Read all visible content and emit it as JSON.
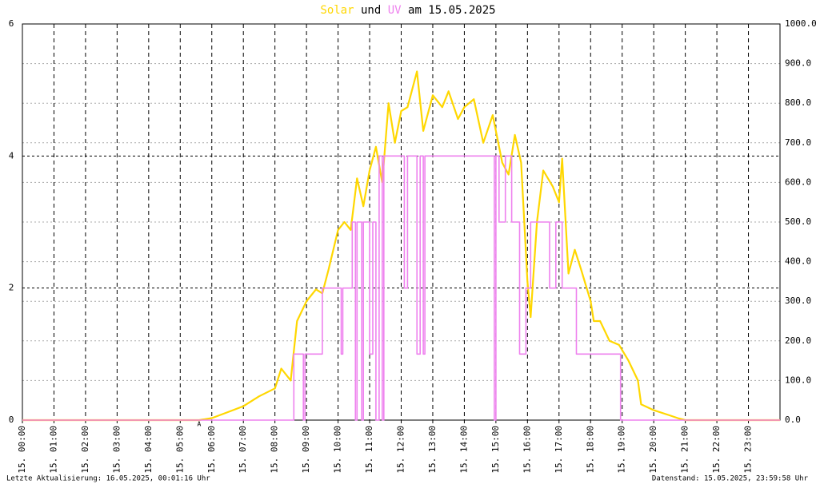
{
  "chart_data": {
    "type": "line",
    "title_connector": "und",
    "title_date": "am 15.05.2025",
    "footer_left": "Letzte Aktualisierung: 16.05.2025, 00:01:16 Uhr",
    "footer_right": "Datenstand: 15.05.2025, 23:59:58 Uhr",
    "xlim": [
      0,
      24
    ],
    "xticks": [
      {
        "value": 0,
        "label": "15. 00:00"
      },
      {
        "value": 1,
        "label": "15. 01:00"
      },
      {
        "value": 2,
        "label": "15. 02:00"
      },
      {
        "value": 3,
        "label": "15. 03:00"
      },
      {
        "value": 4,
        "label": "15. 04:00"
      },
      {
        "value": 5,
        "label": "15. 05:00"
      },
      {
        "value": 6,
        "label": "15. 06:00"
      },
      {
        "value": 7,
        "label": "15. 07:00"
      },
      {
        "value": 8,
        "label": "15. 08:00"
      },
      {
        "value": 9,
        "label": "15. 09:00"
      },
      {
        "value": 10,
        "label": "15. 10:00"
      },
      {
        "value": 11,
        "label": "15. 11:00"
      },
      {
        "value": 12,
        "label": "15. 12:00"
      },
      {
        "value": 13,
        "label": "15. 13:00"
      },
      {
        "value": 14,
        "label": "15. 14:00"
      },
      {
        "value": 15,
        "label": "15. 15:00"
      },
      {
        "value": 16,
        "label": "15. 16:00"
      },
      {
        "value": 17,
        "label": "15. 17:00"
      },
      {
        "value": 18,
        "label": "15. 18:00"
      },
      {
        "value": 19,
        "label": "15. 19:00"
      },
      {
        "value": 20,
        "label": "15. 20:00"
      },
      {
        "value": 21,
        "label": "15. 21:00"
      },
      {
        "value": 22,
        "label": "15. 22:00"
      },
      {
        "value": 23,
        "label": "15. 23:00"
      }
    ],
    "ylim": [
      0,
      6
    ],
    "yticks": [
      0,
      2,
      4,
      6
    ],
    "y2lim": [
      0,
      1000
    ],
    "y2ticks": [
      {
        "value": 0,
        "label": "0.0"
      },
      {
        "value": 100,
        "label": "100.0"
      },
      {
        "value": 200,
        "label": "200.0"
      },
      {
        "value": 300,
        "label": "300.0"
      },
      {
        "value": 400,
        "label": "400.0"
      },
      {
        "value": 500,
        "label": "500.0"
      },
      {
        "value": 600,
        "label": "600.0"
      },
      {
        "value": 700,
        "label": "700.0"
      },
      {
        "value": 800,
        "label": "800.0"
      },
      {
        "value": 900,
        "label": "900.0"
      },
      {
        "value": 1000,
        "label": "1000.0"
      }
    ],
    "grid": true,
    "annotations": [
      {
        "text": "A",
        "x": 5.6,
        "color": "#ff0000"
      }
    ],
    "series": [
      {
        "name": "Solar",
        "color": "#ffd700",
        "axis": "y2",
        "x": [
          0,
          5.6,
          6,
          6.5,
          7,
          7.5,
          8,
          8.2,
          8.5,
          8.7,
          9,
          9.3,
          9.5,
          9.7,
          10,
          10.2,
          10.4,
          10.6,
          10.8,
          11,
          11.2,
          11.4,
          11.6,
          11.8,
          12,
          12.2,
          12.5,
          12.7,
          13,
          13.3,
          13.5,
          13.8,
          14,
          14.3,
          14.6,
          14.9,
          15.2,
          15.4,
          15.6,
          15.8,
          16,
          16.1,
          16.3,
          16.5,
          16.8,
          17,
          17.1,
          17.3,
          17.5,
          17.7,
          18,
          18.1,
          18.3,
          18.6,
          18.9,
          19.2,
          19.5,
          19.6,
          20,
          20.5,
          20.8,
          21,
          24
        ],
        "values": [
          0,
          0,
          5,
          20,
          35,
          60,
          80,
          130,
          100,
          250,
          300,
          330,
          320,
          380,
          480,
          500,
          480,
          610,
          540,
          630,
          690,
          600,
          800,
          700,
          780,
          790,
          880,
          730,
          820,
          790,
          830,
          760,
          790,
          810,
          700,
          770,
          650,
          620,
          720,
          650,
          350,
          260,
          500,
          630,
          590,
          550,
          660,
          370,
          430,
          380,
          300,
          250,
          250,
          200,
          190,
          150,
          100,
          40,
          25,
          12,
          4,
          0,
          0
        ]
      },
      {
        "name": "UV",
        "color": "#ee82ee",
        "axis": "y",
        "x": [
          0,
          8.6,
          8.6,
          8.9,
          8.9,
          8.95,
          8.95,
          9.5,
          9.5,
          10.1,
          10.1,
          10.15,
          10.15,
          10.45,
          10.45,
          10.55,
          10.55,
          10.6,
          10.6,
          10.75,
          10.75,
          10.8,
          10.8,
          11,
          11,
          11.1,
          11.1,
          11.2,
          11.2,
          11.3,
          11.3,
          11.4,
          11.4,
          11.45,
          11.45,
          12.1,
          12.1,
          12.2,
          12.2,
          12.5,
          12.5,
          12.6,
          12.6,
          12.7,
          12.7,
          12.75,
          12.75,
          14.95,
          14.95,
          15,
          15,
          15.1,
          15.1,
          15.3,
          15.3,
          15.5,
          15.5,
          15.75,
          15.75,
          15.95,
          15.95,
          16.1,
          16.1,
          16.7,
          16.7,
          16.9,
          16.9,
          17.1,
          17.1,
          17.55,
          17.55,
          18.95,
          18.95,
          24
        ],
        "values": [
          0,
          0,
          1,
          1,
          0,
          0,
          1,
          1,
          2,
          2,
          1,
          1,
          2,
          2,
          3,
          3,
          0,
          0,
          3,
          3,
          0,
          0,
          3,
          3,
          1,
          1,
          3,
          3,
          0,
          0,
          4,
          4,
          0,
          0,
          4,
          4,
          2,
          2,
          4,
          4,
          1,
          1,
          4,
          4,
          1,
          1,
          4,
          4,
          0,
          0,
          4,
          4,
          3,
          3,
          4,
          4,
          3,
          3,
          1,
          1,
          2,
          2,
          3,
          3,
          2,
          2,
          3,
          3,
          2,
          2,
          1,
          1,
          0,
          0
        ]
      }
    ]
  }
}
